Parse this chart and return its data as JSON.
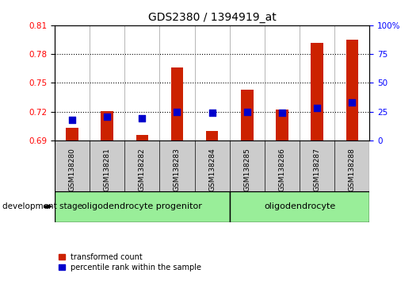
{
  "title": "GDS2380 / 1394919_at",
  "samples": [
    "GSM138280",
    "GSM138281",
    "GSM138282",
    "GSM138283",
    "GSM138284",
    "GSM138285",
    "GSM138286",
    "GSM138287",
    "GSM138288"
  ],
  "transformed_count": [
    0.703,
    0.721,
    0.696,
    0.766,
    0.7,
    0.743,
    0.722,
    0.792,
    0.795
  ],
  "percentile_rank": [
    18,
    21,
    19,
    25,
    24,
    25,
    24,
    28,
    33
  ],
  "ylim_left": [
    0.69,
    0.81
  ],
  "ylim_right": [
    0,
    100
  ],
  "yticks_left": [
    0.69,
    0.72,
    0.75,
    0.78,
    0.81
  ],
  "yticks_right": [
    0,
    25,
    50,
    75,
    100
  ],
  "bar_color": "#CC2200",
  "dot_color": "#0000CC",
  "group1_label": "oligodendrocyte progenitor",
  "group2_label": "oligodendrocyte",
  "group1_count": 5,
  "group2_count": 4,
  "dev_stage_label": "development stage",
  "legend_bar_label": "transformed count",
  "legend_dot_label": "percentile rank within the sample",
  "bg_color": "#CCCCCC",
  "group_color": "#99EE99",
  "bar_width": 0.35,
  "title_fontsize": 10,
  "tick_fontsize": 7.5,
  "axis_label_fontsize": 8
}
